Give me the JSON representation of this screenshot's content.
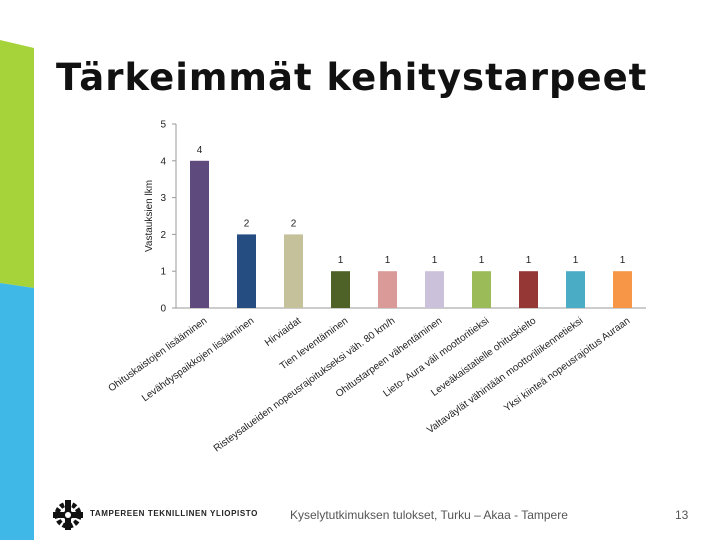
{
  "slide": {
    "title": "Tärkeimmät kehitystarpeet",
    "footer_org": "TAMPEREEN TEKNILLINEN YLIOPISTO",
    "footer_text": "Kyselytutkimuksen tulokset, Turku – Akaa - Tampere",
    "page_number": "13",
    "accent_green": "#a6d23a",
    "accent_blue": "#3fb8e8"
  },
  "chart_data": {
    "type": "bar",
    "title": "",
    "xlabel": "",
    "ylabel": "Vastauksien lkm",
    "ylim": [
      0,
      5
    ],
    "yticks": [
      0,
      1,
      2,
      3,
      4,
      5
    ],
    "grid": false,
    "legend": "none",
    "categories": [
      "Ohituskaistojen lisääminen",
      "Levähdyspaikkojen lisääminen",
      "Hirviaidat",
      "Tien leventäminen",
      "Risteysalueiden nopeusrajoitukseksi väh. 80 km/h",
      "Ohitustarpeen vähentäminen",
      "Lieto- Aura väli moottoritieksi",
      "Leveäkaistatielle ohituskielto",
      "Valtaväylät vähintään moottoriliikennetieksi",
      "Yksi kiinteä nopeusrajoitus Auraan"
    ],
    "values": [
      4,
      2,
      2,
      1,
      1,
      1,
      1,
      1,
      1,
      1
    ],
    "data_labels": [
      "4",
      "2",
      "2",
      "1",
      "1",
      "1",
      "1",
      "1",
      "1",
      "1"
    ],
    "colors": [
      "#5e4a7d",
      "#254d82",
      "#c5c29b",
      "#4e6127",
      "#d99a98",
      "#ccc1da",
      "#9bbb59",
      "#953735",
      "#4bacc6",
      "#f79646"
    ]
  }
}
